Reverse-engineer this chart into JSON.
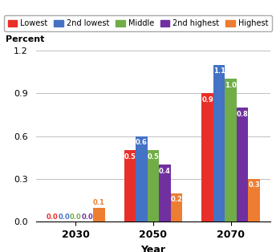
{
  "years": [
    2030,
    2050,
    2070
  ],
  "categories": [
    "Lowest",
    "2nd lowest",
    "Middle",
    "2nd highest",
    "Highest"
  ],
  "colors": [
    "#e8302a",
    "#4472c4",
    "#70ad47",
    "#7030a0",
    "#ed7d31"
  ],
  "label_colors": [
    "#e8302a",
    "#4472c4",
    "#70ad47",
    "#7030a0",
    "#ed7d31"
  ],
  "values": {
    "Lowest": [
      0.0,
      0.5,
      0.9
    ],
    "2nd lowest": [
      0.0,
      0.6,
      1.1
    ],
    "Middle": [
      0.0,
      0.5,
      1.0
    ],
    "2nd highest": [
      0.0,
      0.4,
      0.8
    ],
    "Highest": [
      0.1,
      0.2,
      0.3
    ]
  },
  "ylabel": "Percent",
  "xlabel": "Year",
  "ylim": [
    0.0,
    1.2
  ],
  "yticks": [
    0.0,
    0.3,
    0.6,
    0.9,
    1.2
  ],
  "background_color": "#ffffff",
  "grid_color": "#c0c0c0",
  "group_width": 0.75,
  "figsize": [
    3.44,
    3.14
  ],
  "dpi": 100
}
